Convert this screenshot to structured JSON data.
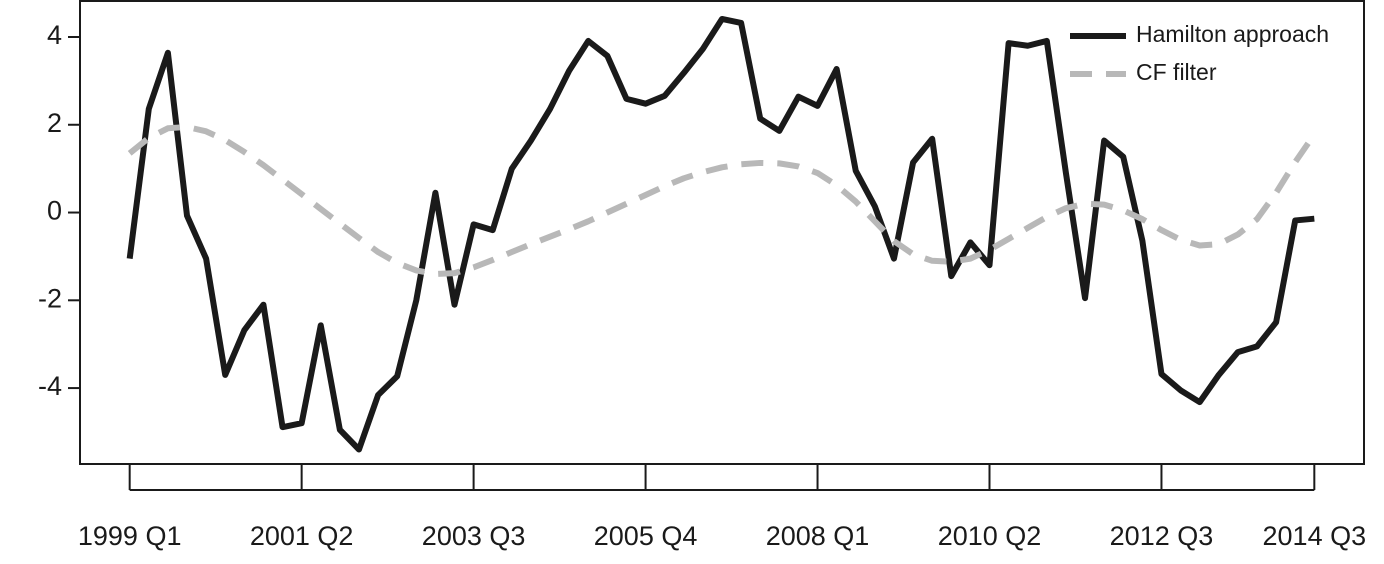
{
  "chart_data": {
    "type": "line",
    "categories": [
      "1999 Q1",
      null,
      null,
      null,
      null,
      null,
      null,
      null,
      null,
      "2001 Q2",
      null,
      null,
      null,
      null,
      null,
      null,
      null,
      null,
      "2003 Q3",
      null,
      null,
      null,
      null,
      null,
      null,
      null,
      null,
      "2005 Q4",
      null,
      null,
      null,
      null,
      null,
      null,
      null,
      null,
      "2008 Q1",
      null,
      null,
      null,
      null,
      null,
      null,
      null,
      null,
      "2010 Q2",
      null,
      null,
      null,
      null,
      null,
      null,
      null,
      null,
      "2012 Q3",
      null,
      null,
      null,
      null,
      null,
      null,
      null,
      "2014 Q3"
    ],
    "series": [
      {
        "name": "Hamilton approach",
        "color": "#1a1a1a",
        "dash": "solid",
        "values": [
          -1.05,
          2.36,
          3.64,
          -0.07,
          -1.05,
          -3.7,
          -2.68,
          -2.1,
          -4.89,
          -4.8,
          -2.57,
          -4.95,
          -5.4,
          -4.16,
          -3.73,
          -2.0,
          0.45,
          -2.1,
          -0.27,
          -0.4,
          1.0,
          1.64,
          2.36,
          3.23,
          3.91,
          3.57,
          2.59,
          2.48,
          2.66,
          3.18,
          3.73,
          4.41,
          4.32,
          2.14,
          1.86,
          2.64,
          2.43,
          3.27,
          0.95,
          0.14,
          -1.05,
          1.14,
          1.68,
          -1.45,
          -0.68,
          -1.2,
          3.86,
          3.8,
          3.91,
          0.9,
          -1.95,
          1.64,
          1.27,
          -0.64,
          -3.68,
          -4.05,
          -4.32,
          -3.7,
          -3.18,
          -3.05,
          -2.5,
          -0.18,
          -0.14
        ]
      },
      {
        "name": "CF filter",
        "color": "#b8b8b8",
        "dash": "dashed",
        "values": [
          1.35,
          1.7,
          1.92,
          1.95,
          1.85,
          1.65,
          1.38,
          1.08,
          0.75,
          0.42,
          0.08,
          -0.25,
          -0.58,
          -0.9,
          -1.15,
          -1.32,
          -1.4,
          -1.38,
          -1.25,
          -1.08,
          -0.9,
          -0.72,
          -0.55,
          -0.38,
          -0.2,
          0.0,
          0.2,
          0.4,
          0.6,
          0.78,
          0.92,
          1.03,
          1.1,
          1.13,
          1.12,
          1.05,
          0.9,
          0.62,
          0.25,
          -0.2,
          -0.65,
          -0.95,
          -1.1,
          -1.12,
          -1.05,
          -0.85,
          -0.6,
          -0.35,
          -0.1,
          0.1,
          0.2,
          0.18,
          0.05,
          -0.15,
          -0.4,
          -0.62,
          -0.75,
          -0.72,
          -0.5,
          -0.15,
          0.45,
          1.15,
          1.78
        ]
      }
    ],
    "ylim": [
      -5.73,
      4.82
    ],
    "yticks": [
      -4,
      -2,
      0,
      2,
      4
    ],
    "legend": "top-right",
    "grid": false
  }
}
